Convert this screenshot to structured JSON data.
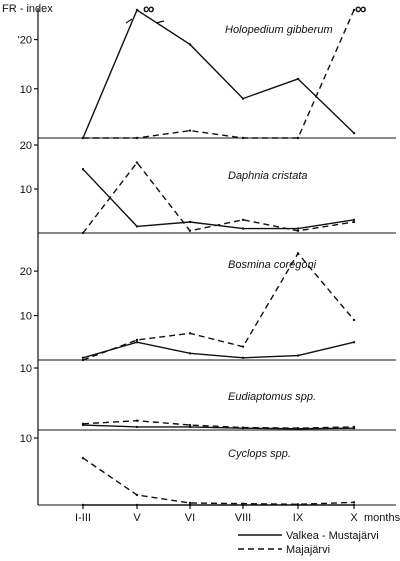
{
  "chart_data": {
    "type": "line",
    "ylabel": "FR - index",
    "xlabel": "months",
    "categories": [
      "I-III",
      "V",
      "VI",
      "VIII",
      "IX",
      "X"
    ],
    "legend": {
      "placement": "bottom-right"
    },
    "series_styles": {
      "Valkea - Mustajärvi": "solid",
      "Majajärvi": "dashed"
    },
    "panels": [
      {
        "title": "Holopedium gibberum",
        "ylim": [
          0,
          26
        ],
        "ticks": [
          "10",
          "'20"
        ],
        "tick_values": [
          10,
          20
        ],
        "series": [
          {
            "name": "Valkea - Mustajärvi",
            "values": [
              0,
              "∞",
              19,
              8,
              12,
              1
            ]
          },
          {
            "name": "Majajärvi",
            "values": [
              0,
              0,
              1.5,
              0,
              0,
              "∞"
            ]
          }
        ],
        "annotations": [
          "∞",
          "∞"
        ]
      },
      {
        "title": "Daphnia cristata",
        "ylim": [
          0,
          20
        ],
        "ticks": [
          "10",
          "20"
        ],
        "tick_values": [
          10,
          20
        ],
        "series": [
          {
            "name": "Valkea - Mustajärvi",
            "values": [
              14.5,
              1.5,
              2.5,
              1,
              1,
              3
            ]
          },
          {
            "name": "Majajärvi",
            "values": [
              0,
              16,
              0.5,
              3,
              0.5,
              2.5
            ]
          }
        ]
      },
      {
        "title": "Bosmina coregoni",
        "ylim": [
          0,
          27
        ],
        "ticks": [
          "10",
          "20"
        ],
        "tick_values": [
          10,
          20
        ],
        "series": [
          {
            "name": "Valkea - Mustajärvi",
            "values": [
              0.5,
              4,
              1.5,
              0.5,
              1,
              4
            ]
          },
          {
            "name": "Majajärvi",
            "values": [
              0,
              4.5,
              6,
              3,
              24,
              9
            ]
          }
        ]
      },
      {
        "title": "Eudiaptomus spp.",
        "ylim": [
          0,
          10
        ],
        "ticks": [
          "10"
        ],
        "tick_values": [
          10
        ],
        "series": [
          {
            "name": "Valkea - Mustajärvi",
            "values": [
              0.8,
              0.5,
              0.5,
              0.3,
              0.2,
              0.3
            ]
          },
          {
            "name": "Majajärvi",
            "values": [
              1,
              1.5,
              0.8,
              0.4,
              0.3,
              0.5
            ]
          }
        ]
      },
      {
        "title": "Cyclops spp.",
        "ylim": [
          0,
          10
        ],
        "ticks": [
          "10"
        ],
        "tick_values": [
          10
        ],
        "series": [
          {
            "name": "Valkea - Mustajärvi",
            "values": [
              0,
              0,
              0,
              0,
              0,
              0
            ]
          },
          {
            "name": "Majajärvi",
            "values": [
              7,
              1.5,
              0.3,
              0.2,
              0.1,
              0.4
            ]
          }
        ]
      }
    ]
  }
}
